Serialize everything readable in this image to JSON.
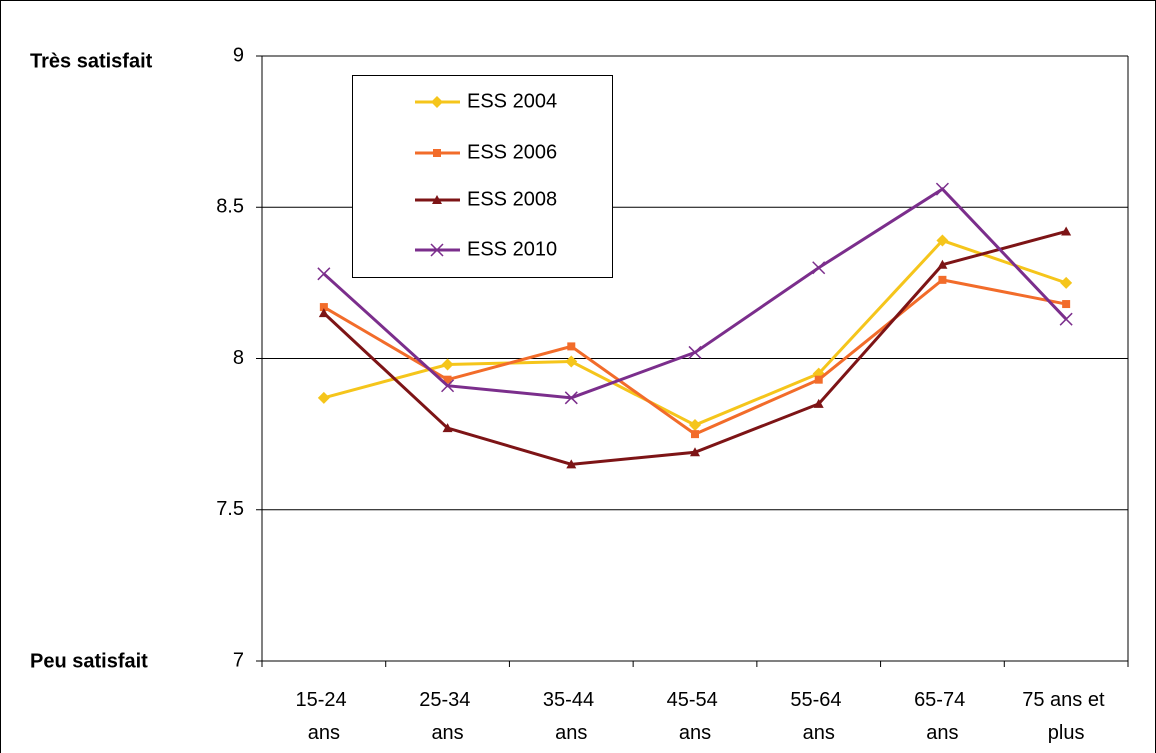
{
  "chart_data": {
    "type": "line",
    "annotations": [
      "Très satisfait",
      "Peu satisfait"
    ],
    "categories": [
      "15-24 ans",
      "25-34 ans",
      "35-44 ans",
      "45-54 ans",
      "55-64 ans",
      "65-74 ans",
      "75 ans et plus"
    ],
    "series": [
      {
        "name": "ESS 2004",
        "color": "#f5c51b",
        "marker": "diamond",
        "values": [
          7.87,
          7.98,
          7.99,
          7.78,
          7.95,
          8.39,
          8.25
        ]
      },
      {
        "name": "ESS 2006",
        "color": "#f26c2a",
        "marker": "square",
        "values": [
          8.17,
          7.93,
          8.04,
          7.75,
          7.93,
          8.26,
          8.18
        ]
      },
      {
        "name": "ESS 2008",
        "color": "#7d1416",
        "marker": "triangle",
        "values": [
          8.15,
          7.77,
          7.65,
          7.69,
          7.85,
          8.31,
          8.42
        ]
      },
      {
        "name": "ESS 2010",
        "color": "#7b2e8c",
        "marker": "x",
        "values": [
          8.28,
          7.91,
          7.87,
          8.02,
          8.3,
          8.56,
          8.13
        ]
      }
    ],
    "ylim": [
      7,
      9
    ],
    "yticks": [
      7,
      7.5,
      8,
      8.5,
      9
    ],
    "grid": true
  }
}
